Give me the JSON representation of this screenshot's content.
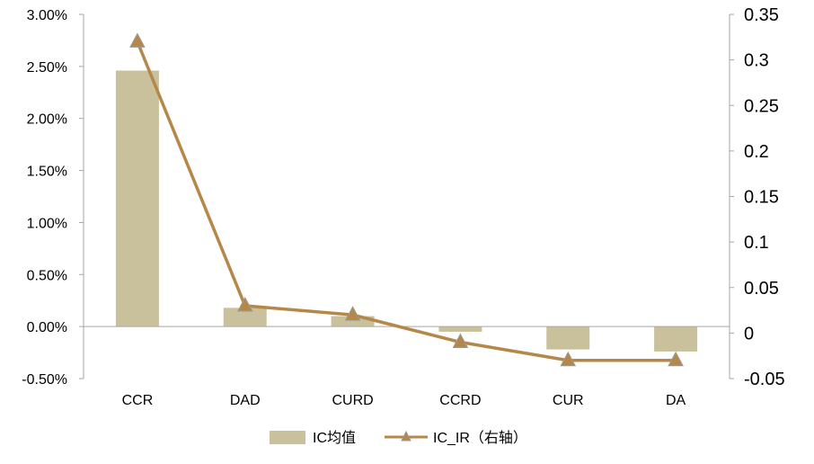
{
  "chart_data": {
    "type": "bar",
    "categories": [
      "CCR",
      "DAD",
      "CURD",
      "CCRD",
      "CUR",
      "DA"
    ],
    "series": [
      {
        "name": "IC均值",
        "type": "bar",
        "axis": "left",
        "color": "#c9c19b",
        "values": [
          0.0246,
          0.0018,
          0.001,
          -0.0005,
          -0.0022,
          -0.0024
        ]
      },
      {
        "name": "IC_IR（右轴）",
        "type": "line",
        "axis": "right",
        "color": "#b5884a",
        "marker": "triangle",
        "values": [
          0.32,
          0.03,
          0.02,
          -0.01,
          -0.03,
          -0.03
        ]
      }
    ],
    "y_left": {
      "lim": [
        -0.005,
        0.03
      ],
      "ticks": [
        0.03,
        0.025,
        0.02,
        0.015,
        0.01,
        0.005,
        0.0,
        -0.005
      ],
      "tick_labels": [
        "3.00%",
        "2.50%",
        "2.00%",
        "1.50%",
        "1.00%",
        "0.50%",
        "0.00%",
        "-0.50%"
      ]
    },
    "y_right": {
      "lim": [
        -0.05,
        0.35
      ],
      "ticks": [
        0.35,
        0.3,
        0.25,
        0.2,
        0.15,
        0.1,
        0.05,
        0,
        -0.05
      ],
      "tick_labels": [
        "0.35",
        "0.3",
        "0.25",
        "0.2",
        "0.15",
        "0.1",
        "0.05",
        "0",
        "-0.05"
      ]
    },
    "grid": false,
    "legend_position": "bottom-center"
  }
}
